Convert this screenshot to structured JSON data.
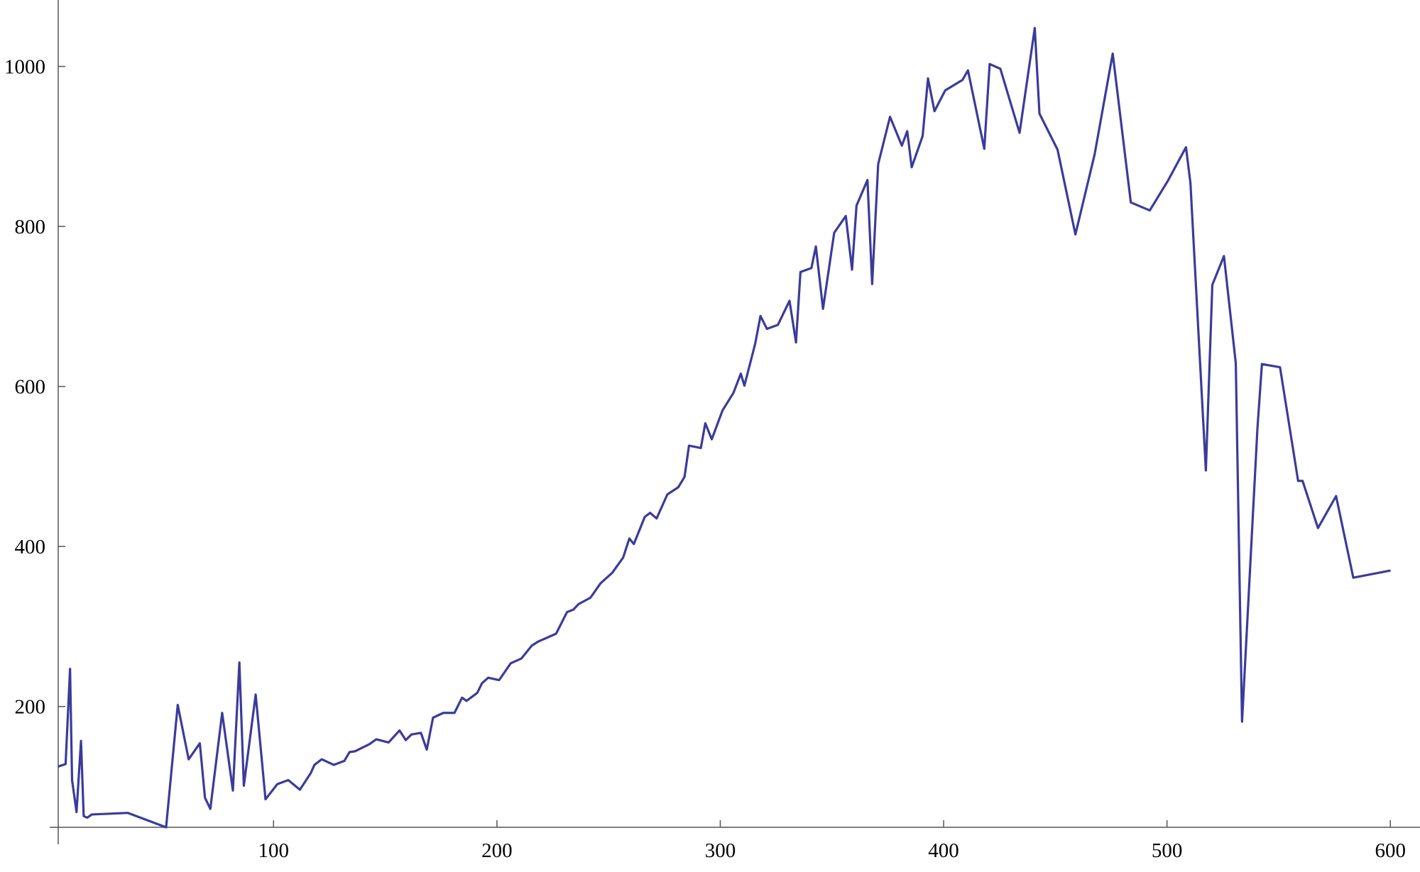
{
  "chart_data": {
    "type": "line",
    "x": [
      3.6,
      6.9,
      8.9,
      9.8,
      11.8,
      13.8,
      15,
      16.6,
      18.6,
      34.8,
      51.9,
      57.1,
      62,
      67,
      69.3,
      71.7,
      77,
      81.8,
      84.7,
      86.7,
      92,
      96.4,
      101.7,
      106.6,
      111.8,
      116.7,
      118.3,
      121.6,
      127,
      131.7,
      134,
      136.5,
      143,
      146,
      151.5,
      156.4,
      159.2,
      161.7,
      166,
      168.6,
      171.4,
      176,
      181,
      184.4,
      186.4,
      191.2,
      193.3,
      196.1,
      201,
      206.2,
      211,
      215.6,
      218.4,
      226.5,
      231.4,
      234.2,
      236.6,
      241.9,
      246.4,
      251.6,
      256.5,
      259.3,
      261.3,
      266.2,
      268.6,
      271.5,
      276.3,
      281.2,
      284,
      286,
      291.3,
      293.3,
      296.2,
      301,
      305.9,
      309.2,
      310.8,
      315.6,
      318,
      320.9,
      325.8,
      331,
      333.9,
      335.9,
      340.8,
      342.8,
      346,
      351,
      356.2,
      359,
      361,
      365.9,
      368,
      370.7,
      376,
      381.3,
      383.7,
      385.7,
      390.6,
      393,
      395.9,
      400.7,
      408.4,
      410.9,
      418.2,
      420.6,
      425.4,
      434,
      440.8,
      442.9,
      451,
      459,
      467.6,
      475.7,
      483.8,
      492.3,
      500.4,
      508.5,
      510.5,
      517.4,
      520.3,
      525.5,
      530.8,
      533.6,
      540.5,
      542.5,
      550.6,
      558.7,
      560.7,
      567.6,
      575.7,
      583.4,
      600.1
    ],
    "series": [
      {
        "color": "#3b3b9b",
        "values": [
          125,
          128,
          247,
          108,
          68,
          157,
          63,
          61,
          65,
          67,
          49,
          202,
          134,
          154,
          86,
          72,
          192,
          95,
          255,
          101,
          215,
          84,
          103,
          108,
          96,
          117,
          127,
          134,
          127,
          132,
          143,
          144,
          153,
          159,
          155,
          170,
          158,
          165,
          167,
          146,
          186,
          192,
          192,
          211,
          207,
          217,
          229,
          236,
          233,
          254,
          260,
          276,
          281,
          291,
          318,
          321,
          328,
          336,
          354,
          367,
          386,
          410,
          403,
          437,
          442,
          435,
          465,
          474,
          487,
          526,
          523,
          554,
          534,
          570,
          592,
          616,
          601,
          653,
          688,
          672,
          677,
          707,
          655,
          743,
          748,
          775,
          697,
          792,
          813,
          746,
          826,
          858,
          728,
          878,
          937,
          901,
          919,
          874,
          913,
          985,
          944,
          970,
          983,
          995,
          897,
          1003,
          997,
          917,
          1048,
          941,
          896,
          790,
          890,
          1016,
          830,
          820,
          857,
          899,
          854,
          495,
          727,
          763,
          629,
          181,
          548,
          628,
          624,
          482,
          482,
          423,
          463,
          361,
          370
        ]
      }
    ],
    "xlim": [
      3.6,
      612
    ],
    "xticks": [
      100,
      200,
      300,
      400,
      500,
      600
    ],
    "ylim": [
      49,
      1083
    ],
    "yticks": [
      200,
      400,
      600,
      800,
      1000
    ]
  }
}
